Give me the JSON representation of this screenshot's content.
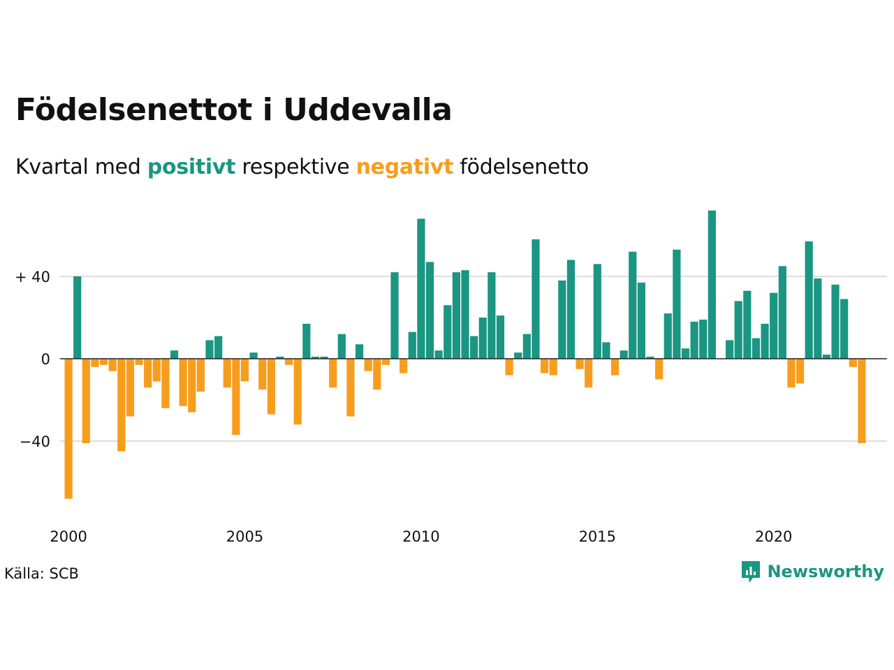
{
  "header": {
    "title": "Födelsenettot i Uddevalla",
    "subtitle_prefix": "Kvartal med ",
    "subtitle_positive": "positivt",
    "subtitle_middle": " respektive ",
    "subtitle_negative": "negativt",
    "subtitle_suffix": " födelsenetto"
  },
  "footer": {
    "source": "Källa: SCB",
    "brand": "Newsworthy"
  },
  "colors": {
    "positive": "#1a9682",
    "negative": "#f79d1e",
    "grid": "#dddddd",
    "text": "#111111"
  },
  "chart_data": {
    "type": "bar",
    "x_start_year": 2000,
    "x_period": "quarter",
    "x_ticks": [
      "2000",
      "2005",
      "2010",
      "2015",
      "2020"
    ],
    "y_ticks": [
      {
        "value": 40,
        "label": "+ 40"
      },
      {
        "value": 0,
        "label": "0"
      },
      {
        "value": -40,
        "label": "−40"
      }
    ],
    "ylim": [
      -70,
      72
    ],
    "grid": true,
    "legend": "none",
    "series": [
      {
        "values": [
          -68,
          40,
          -41,
          -4,
          -3,
          -6,
          -45,
          -28,
          -3,
          -14,
          -11,
          -24,
          4,
          -23,
          -26,
          -16,
          9,
          11,
          -14,
          -37,
          -11,
          3,
          -15,
          -27,
          1,
          -3,
          -32,
          17,
          1,
          1,
          -14,
          12,
          -28,
          7,
          -6,
          -15,
          -3,
          42,
          -7,
          13,
          68,
          47,
          4,
          26,
          42,
          43,
          11,
          20,
          42,
          21,
          -8,
          3,
          12,
          58,
          -7,
          -8,
          38,
          48,
          -5,
          -14,
          46,
          8,
          -8,
          4,
          52,
          37,
          1,
          -10,
          22,
          53,
          5,
          18,
          19,
          72,
          0,
          9,
          28,
          33,
          10,
          17,
          32,
          45,
          -14,
          -12,
          57,
          39,
          2,
          36,
          29,
          -4,
          -41
        ]
      }
    ]
  }
}
